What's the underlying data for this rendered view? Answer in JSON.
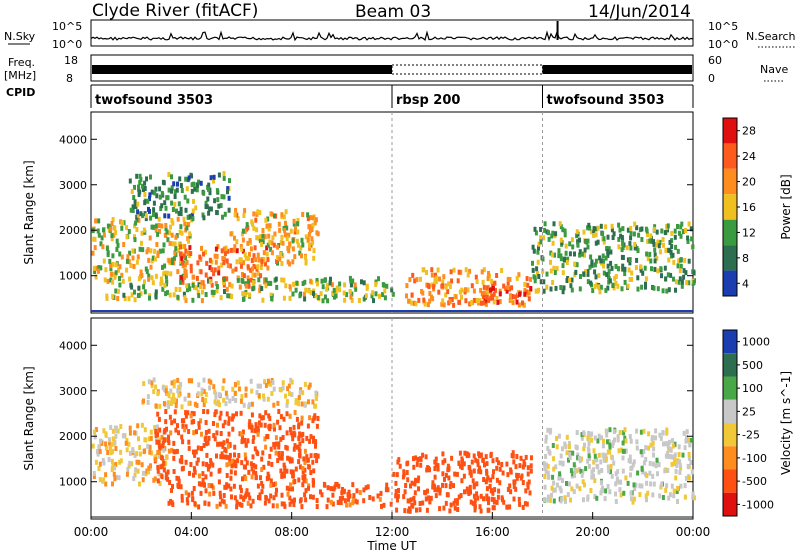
{
  "header": {
    "station": "Clyde River (fitACF)",
    "beam": "Beam 03",
    "date": "14/Jun/2014"
  },
  "strip_labels": {
    "nsky": "N.Sky",
    "nsky_top": "10^5",
    "nsky_bottom": "10^0",
    "nsearch": "N.Search",
    "nsearch_top": "10^5",
    "nsearch_bottom": "10^0",
    "freq": "Freq.",
    "freq_unit": "[MHz]",
    "freq_top": "18",
    "freq_bottom": "8",
    "nave": "Nave",
    "nave_top": "60",
    "nave_bottom": "0",
    "cpid": "CPID"
  },
  "cpid_segments": [
    {
      "label": "twofsound 3503",
      "start_hour": 0
    },
    {
      "label": "rbsp 200",
      "start_hour": 12
    },
    {
      "label": "twofsound 3503",
      "start_hour": 18
    }
  ],
  "power_colorbar": {
    "label": "Power [dB]",
    "ticks": [
      "28",
      "24",
      "20",
      "16",
      "12",
      "8",
      "4"
    ],
    "colors": [
      "#e01010",
      "#ff5a1e",
      "#ff8c1e",
      "#f0c020",
      "#3a9a40",
      "#2e6e50",
      "#1a3eb0"
    ]
  },
  "velocity_colorbar": {
    "label": "Velocity [m s^-1]",
    "ticks": [
      "1000",
      "500",
      "100",
      "25",
      "-25",
      "-100",
      "-500",
      "-1000"
    ],
    "colors": [
      "#1a3eb0",
      "#2e6e50",
      "#48a848",
      "#c8c8c8",
      "#f0c838",
      "#ff8c1e",
      "#ff5014",
      "#e01010"
    ]
  },
  "chart_data": {
    "type": "heatmap",
    "x_label": "Time UT",
    "x_ticks": [
      "00:00",
      "04:00",
      "08:00",
      "12:00",
      "16:00",
      "20:00",
      "00:00"
    ],
    "x_range_hours": [
      0,
      24
    ],
    "y_label": "Slant Range [km]",
    "y_ticks": [
      1000,
      2000,
      3000,
      4000
    ],
    "y_range_km": [
      180,
      4600
    ],
    "panels": [
      {
        "name": "Power",
        "unit": "dB",
        "echo_bands": [
          {
            "t_start": 0.0,
            "t_end": 4.0,
            "range_km": [
              1000,
              2300
            ],
            "value": 16
          },
          {
            "t_start": 1.5,
            "t_end": 5.5,
            "range_km": [
              2300,
              3300
            ],
            "value": 10
          },
          {
            "t_start": 3.5,
            "t_end": 7.0,
            "range_km": [
              800,
              1700
            ],
            "value": 22
          },
          {
            "t_start": 5.5,
            "t_end": 9.0,
            "range_km": [
              1300,
              2500
            ],
            "value": 18
          },
          {
            "t_start": 0.5,
            "t_end": 12.0,
            "range_km": [
              500,
              1000
            ],
            "value": 14
          },
          {
            "t_start": 12.5,
            "t_end": 17.5,
            "range_km": [
              400,
              1200
            ],
            "value": 20
          },
          {
            "t_start": 15.5,
            "t_end": 17.5,
            "range_km": [
              400,
              800
            ],
            "value": 26
          },
          {
            "t_start": 17.5,
            "t_end": 24.0,
            "range_km": [
              700,
              2200
            ],
            "value": 12
          }
        ]
      },
      {
        "name": "Velocity",
        "unit": "m s^-1",
        "echo_bands": [
          {
            "t_start": 0.0,
            "t_end": 3.0,
            "range_km": [
              1000,
              2300
            ],
            "value": 0
          },
          {
            "t_start": 2.0,
            "t_end": 9.0,
            "range_km": [
              2700,
              3300
            ],
            "value": 0
          },
          {
            "t_start": 2.5,
            "t_end": 9.0,
            "range_km": [
              1000,
              2600
            ],
            "value": -150
          },
          {
            "t_start": 3.0,
            "t_end": 12.0,
            "range_km": [
              500,
              1000
            ],
            "value": -150
          },
          {
            "t_start": 12.0,
            "t_end": 17.5,
            "range_km": [
              400,
              1700
            ],
            "value": -300
          },
          {
            "t_start": 18.0,
            "t_end": 24.0,
            "range_km": [
              600,
              2200
            ],
            "value": 60
          }
        ]
      }
    ]
  }
}
